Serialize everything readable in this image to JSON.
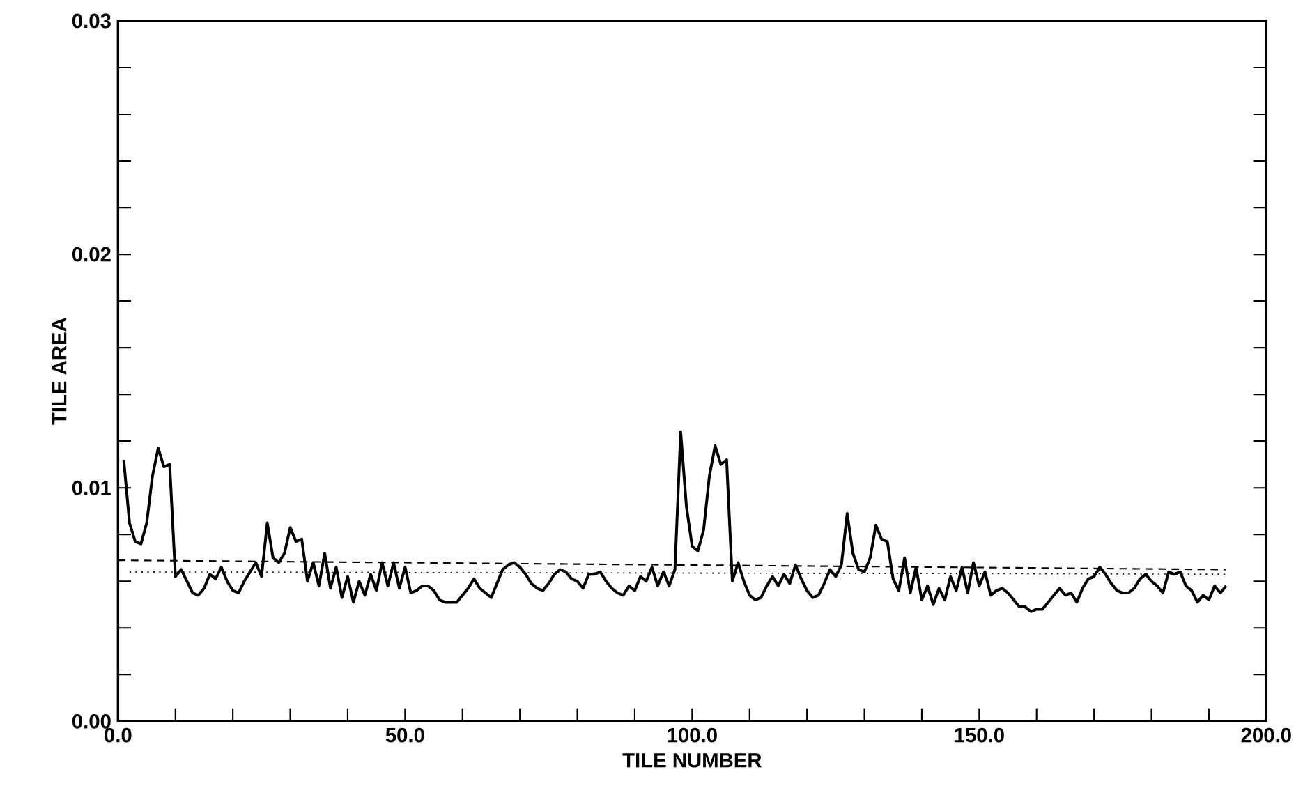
{
  "chart_data": {
    "type": "line",
    "xlabel": "TILE NUMBER",
    "ylabel": "TILE AREA",
    "xlim": [
      0,
      200
    ],
    "ylim": [
      0,
      0.03
    ],
    "xticks": [
      {
        "value": 0,
        "label": "0.0"
      },
      {
        "value": 10,
        "label": null
      },
      {
        "value": 20,
        "label": null
      },
      {
        "value": 30,
        "label": null
      },
      {
        "value": 40,
        "label": null
      },
      {
        "value": 50,
        "label": "50.0"
      },
      {
        "value": 60,
        "label": null
      },
      {
        "value": 70,
        "label": null
      },
      {
        "value": 80,
        "label": null
      },
      {
        "value": 90,
        "label": null
      },
      {
        "value": 100,
        "label": "100.0"
      },
      {
        "value": 110,
        "label": null
      },
      {
        "value": 120,
        "label": null
      },
      {
        "value": 130,
        "label": null
      },
      {
        "value": 140,
        "label": null
      },
      {
        "value": 150,
        "label": "150.0"
      },
      {
        "value": 160,
        "label": null
      },
      {
        "value": 170,
        "label": null
      },
      {
        "value": 180,
        "label": null
      },
      {
        "value": 190,
        "label": null
      },
      {
        "value": 200,
        "label": "200.0"
      }
    ],
    "yticks": [
      {
        "value": 0,
        "label": "0.00"
      },
      {
        "value": 0.002,
        "label": null
      },
      {
        "value": 0.004,
        "label": null
      },
      {
        "value": 0.006,
        "label": null
      },
      {
        "value": 0.008,
        "label": null
      },
      {
        "value": 0.01,
        "label": "0.01"
      },
      {
        "value": 0.012,
        "label": null
      },
      {
        "value": 0.014,
        "label": null
      },
      {
        "value": 0.016,
        "label": null
      },
      {
        "value": 0.018,
        "label": null
      },
      {
        "value": 0.02,
        "label": "0.02"
      },
      {
        "value": 0.022,
        "label": null
      },
      {
        "value": 0.024,
        "label": null
      },
      {
        "value": 0.026,
        "label": null
      },
      {
        "value": 0.028,
        "label": null
      },
      {
        "value": 0.03,
        "label": "0.03"
      }
    ],
    "marker": "none",
    "series": [
      {
        "color": "#000000",
        "line_style": "solid",
        "x": [
          1,
          2,
          3,
          4,
          5,
          6,
          7,
          8,
          9,
          10,
          11,
          12,
          13,
          14,
          15,
          16,
          17,
          18,
          19,
          20,
          21,
          22,
          23,
          24,
          25,
          26,
          27,
          28,
          29,
          30,
          31,
          32,
          33,
          34,
          35,
          36,
          37,
          38,
          39,
          40,
          41,
          42,
          43,
          44,
          45,
          46,
          47,
          48,
          49,
          50,
          51,
          52,
          53,
          54,
          55,
          56,
          57,
          58,
          59,
          60,
          61,
          62,
          63,
          64,
          65,
          66,
          67,
          68,
          69,
          70,
          71,
          72,
          73,
          74,
          75,
          76,
          77,
          78,
          79,
          80,
          81,
          82,
          83,
          84,
          85,
          86,
          87,
          88,
          89,
          90,
          91,
          92,
          93,
          94,
          95,
          96,
          97,
          98,
          99,
          100,
          101,
          102,
          103,
          104,
          105,
          106,
          107,
          108,
          109,
          110,
          111,
          112,
          113,
          114,
          115,
          116,
          117,
          118,
          119,
          120,
          121,
          122,
          123,
          124,
          125,
          126,
          127,
          128,
          129,
          130,
          131,
          132,
          133,
          134,
          135,
          136,
          137,
          138,
          139,
          140,
          141,
          142,
          143,
          144,
          145,
          146,
          147,
          148,
          149,
          150,
          151,
          152,
          153,
          154,
          155,
          156,
          157,
          158,
          159,
          160,
          161,
          162,
          163,
          164,
          165,
          166,
          167,
          168,
          169,
          170,
          171,
          172,
          173,
          174,
          175,
          176,
          177,
          178,
          179,
          180,
          181,
          182,
          183,
          184,
          185,
          186,
          187,
          188,
          189,
          190,
          191,
          192,
          193
        ],
        "values": [
          0.0112,
          0.0085,
          0.0077,
          0.0076,
          0.0085,
          0.0105,
          0.0117,
          0.0109,
          0.011,
          0.0062,
          0.0065,
          0.006,
          0.0055,
          0.0054,
          0.0057,
          0.0063,
          0.0061,
          0.0066,
          0.006,
          0.0056,
          0.0055,
          0.006,
          0.0064,
          0.0068,
          0.0062,
          0.0085,
          0.007,
          0.0068,
          0.0072,
          0.0083,
          0.0077,
          0.0078,
          0.006,
          0.0068,
          0.0058,
          0.0072,
          0.0057,
          0.0066,
          0.0053,
          0.0062,
          0.0051,
          0.006,
          0.0054,
          0.0063,
          0.0056,
          0.0068,
          0.0058,
          0.0068,
          0.0057,
          0.0066,
          0.0055,
          0.0056,
          0.0058,
          0.0058,
          0.0056,
          0.0052,
          0.0051,
          0.0051,
          0.0051,
          0.0054,
          0.0057,
          0.0061,
          0.0057,
          0.0055,
          0.0053,
          0.0059,
          0.0065,
          0.0067,
          0.0068,
          0.0066,
          0.0063,
          0.0059,
          0.0057,
          0.0056,
          0.0059,
          0.0063,
          0.0065,
          0.0064,
          0.0061,
          0.006,
          0.0057,
          0.0063,
          0.0063,
          0.0064,
          0.006,
          0.0057,
          0.0055,
          0.0054,
          0.0058,
          0.0056,
          0.0062,
          0.006,
          0.0066,
          0.0058,
          0.0064,
          0.0058,
          0.0065,
          0.0124,
          0.0092,
          0.0075,
          0.0073,
          0.0082,
          0.0105,
          0.0118,
          0.011,
          0.0112,
          0.006,
          0.0068,
          0.006,
          0.0054,
          0.0052,
          0.0053,
          0.0058,
          0.0062,
          0.0058,
          0.0063,
          0.0059,
          0.0067,
          0.0061,
          0.0056,
          0.0053,
          0.0054,
          0.0059,
          0.0065,
          0.0062,
          0.0067,
          0.0089,
          0.0072,
          0.0065,
          0.0064,
          0.007,
          0.0084,
          0.0078,
          0.0077,
          0.0061,
          0.0056,
          0.007,
          0.0055,
          0.0066,
          0.0052,
          0.0058,
          0.005,
          0.0057,
          0.0052,
          0.0062,
          0.0056,
          0.0066,
          0.0055,
          0.0068,
          0.0058,
          0.0064,
          0.0054,
          0.0056,
          0.0057,
          0.0055,
          0.0052,
          0.0049,
          0.0049,
          0.0047,
          0.0048,
          0.0048,
          0.0051,
          0.0054,
          0.0057,
          0.0054,
          0.0055,
          0.0051,
          0.0057,
          0.0061,
          0.0062,
          0.0066,
          0.0063,
          0.0059,
          0.0056,
          0.0055,
          0.0055,
          0.0057,
          0.0061,
          0.0063,
          0.006,
          0.0058,
          0.0055,
          0.0064,
          0.0063,
          0.0064,
          0.0058,
          0.0056,
          0.0051,
          0.0054,
          0.0052,
          0.0058,
          0.0055,
          0.0058
        ]
      },
      {
        "color": "#000000",
        "line_style": "dashed",
        "x": [
          0,
          193
        ],
        "values": [
          0.0069,
          0.0065
        ]
      },
      {
        "color": "#000000",
        "line_style": "dotted",
        "x": [
          2,
          193
        ],
        "values": [
          0.0064,
          0.0063
        ]
      }
    ]
  }
}
